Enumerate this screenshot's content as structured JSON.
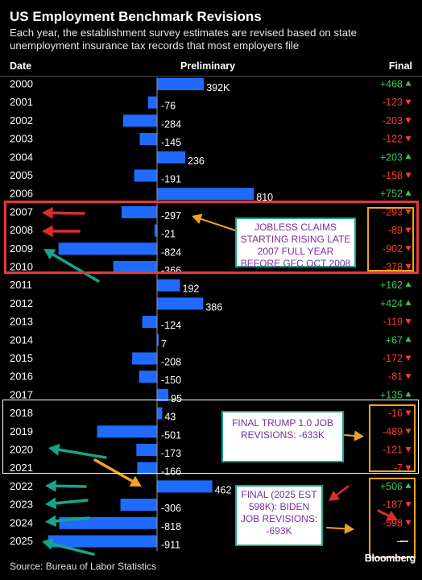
{
  "title": "US Employment Benchmark Revisions",
  "subtitle": "Each year, the establishment survey estimates are revised based on state unemployment insurance tax records that most employers file",
  "headers": {
    "date": "Date",
    "preliminary": "Preliminary",
    "final": "Final"
  },
  "source": "Source: Bureau of Labor Statistics",
  "brand": "Bloomberg",
  "annotations": {
    "jobless_claims": "JOBLESS CLAIMS STARTING RISING LATE 2007 FULL YEAR BEFORE GFC OCT 2008",
    "trump": "FINAL TRUMP 1.0 JOB REVISIONS: -633K",
    "biden": "FINAL (2025 EST 598K): BIDEN JOB REVISIONS: -693K"
  },
  "colors": {
    "bar": "#1f6bff",
    "positive": "#35c759",
    "negative": "#ff3b30",
    "red_box": "#e8363a",
    "orange": "#f2a31c",
    "teal": "#15a58a",
    "white_box": "#ffffff"
  },
  "chart_data": {
    "type": "bar",
    "orientation": "horizontal",
    "categories": [
      "2000",
      "2001",
      "2002",
      "2003",
      "2004",
      "2005",
      "2006",
      "2007",
      "2008",
      "2009",
      "2010",
      "2011",
      "2012",
      "2013",
      "2014",
      "2015",
      "2016",
      "2017",
      "2018",
      "2019",
      "2020",
      "2021",
      "2022",
      "2023",
      "2024",
      "2025"
    ],
    "series": [
      {
        "name": "Preliminary",
        "values": [
          392,
          -76,
          -284,
          -145,
          236,
          -191,
          810,
          -297,
          -21,
          -824,
          -366,
          192,
          386,
          -124,
          7,
          -208,
          -150,
          95,
          43,
          -501,
          -173,
          -166,
          462,
          -306,
          -818,
          -911
        ]
      }
    ],
    "preliminary_labels": [
      "392K",
      "-76",
      "-284",
      "-145",
      "236",
      "-191",
      "810",
      "-297",
      "-21",
      "-824",
      "-366",
      "192",
      "386",
      "-124",
      "7",
      "-208",
      "-150",
      "95",
      "43",
      "-501",
      "-173",
      "-166",
      "462",
      "-306",
      "-818",
      "-911"
    ],
    "final_labels": [
      "+468",
      "-123",
      "-203",
      "-122",
      "+203",
      "-158",
      "+752",
      "-293",
      "-89",
      "-902",
      "-378",
      "+162",
      "+424",
      "-119",
      "+67",
      "-172",
      "-81",
      "+135",
      "-16",
      "-489",
      "-121",
      "-7",
      "+506",
      "-187",
      "-598",
      "–"
    ],
    "final_direction": [
      "up",
      "down",
      "down",
      "down",
      "up",
      "down",
      "up",
      "down",
      "down",
      "down",
      "down",
      "up",
      "up",
      "down",
      "up",
      "down",
      "down",
      "up",
      "down",
      "down",
      "down",
      "down",
      "up",
      "down",
      "down",
      ""
    ]
  }
}
